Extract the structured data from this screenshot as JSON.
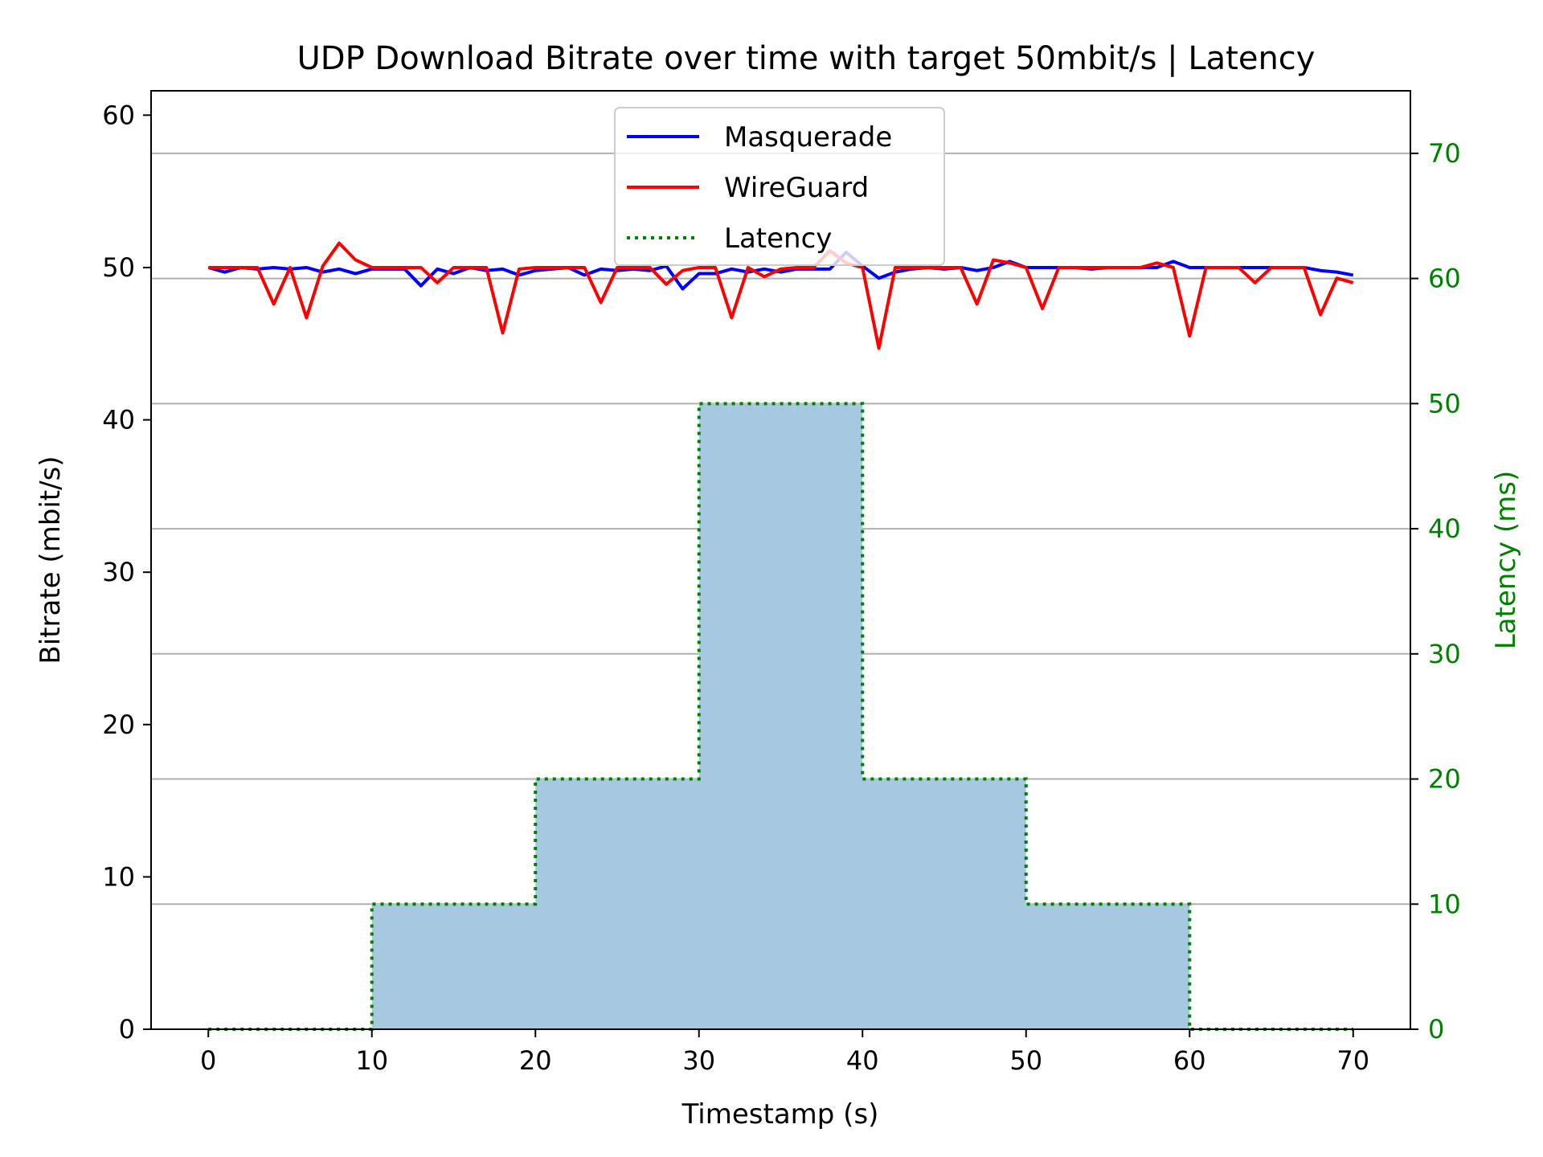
{
  "chart_data": {
    "type": "line",
    "title": "UDP Download Bitrate over time with target 50mbit/s | Latency",
    "xlabel": "Timestamp (s)",
    "ylabel": "Bitrate (mbit/s)",
    "y2label": "Latency (ms)",
    "xlim": [
      -3.5,
      73.5
    ],
    "ylim": [
      0,
      61.6
    ],
    "y2lim": [
      0,
      75
    ],
    "xticks": [
      0,
      10,
      20,
      30,
      40,
      50,
      60,
      70
    ],
    "yticks": [
      0,
      10,
      20,
      30,
      40,
      50,
      60
    ],
    "y2ticks": [
      0,
      10,
      20,
      30,
      40,
      50,
      60,
      70
    ],
    "grid": "horizontal lines at right-axis ticks",
    "legend_position": "upper center",
    "colors": {
      "masquerade": "#0000ff",
      "wireguard": "#ff0000",
      "latency_line": "#008000",
      "latency_fill": "#a6c8e0",
      "right_axis": "#008000",
      "grid": "#b0b0b0"
    },
    "x": [
      0,
      1,
      2,
      3,
      4,
      5,
      6,
      7,
      8,
      9,
      10,
      11,
      12,
      13,
      14,
      15,
      16,
      17,
      18,
      19,
      20,
      21,
      22,
      23,
      24,
      25,
      26,
      27,
      28,
      29,
      30,
      31,
      32,
      33,
      34,
      35,
      36,
      37,
      38,
      39,
      40,
      41,
      42,
      43,
      44,
      45,
      46,
      47,
      48,
      49,
      50,
      51,
      52,
      53,
      54,
      55,
      56,
      57,
      58,
      59,
      60,
      61,
      62,
      63,
      64,
      65,
      66,
      67,
      68,
      69,
      70
    ],
    "series": [
      {
        "name": "Masquerade",
        "axis": "left",
        "style": "solid",
        "values": [
          50.0,
          49.7,
          50.0,
          49.9,
          50.0,
          49.9,
          50.0,
          49.7,
          49.9,
          49.6,
          49.9,
          49.9,
          49.9,
          48.8,
          49.9,
          49.6,
          50.0,
          49.8,
          49.9,
          49.5,
          49.8,
          49.9,
          50.0,
          49.5,
          49.9,
          49.8,
          49.9,
          49.8,
          50.1,
          48.6,
          49.6,
          49.6,
          49.9,
          49.7,
          49.9,
          49.7,
          49.9,
          49.9,
          49.9,
          51.0,
          50.1,
          49.3,
          49.7,
          49.9,
          50.0,
          49.9,
          50.0,
          49.8,
          50.0,
          50.4,
          50.0,
          50.0,
          50.0,
          50.0,
          49.9,
          50.0,
          50.0,
          50.0,
          50.0,
          50.4,
          50.0,
          50.0,
          50.0,
          50.0,
          50.0,
          50.0,
          50.0,
          50.0,
          49.8,
          49.7,
          49.5
        ]
      },
      {
        "name": "WireGuard",
        "axis": "left",
        "style": "solid",
        "values": [
          50.0,
          50.0,
          50.0,
          50.0,
          47.6,
          50.0,
          46.7,
          50.1,
          51.6,
          50.5,
          50.0,
          50.0,
          50.0,
          50.0,
          49.0,
          50.0,
          50.0,
          50.0,
          45.7,
          49.9,
          50.0,
          50.0,
          50.0,
          50.0,
          47.7,
          50.0,
          50.0,
          50.0,
          48.9,
          49.8,
          50.0,
          50.0,
          46.7,
          50.0,
          49.4,
          49.9,
          50.0,
          50.0,
          51.1,
          50.3,
          50.0,
          44.7,
          50.0,
          50.0,
          50.0,
          50.0,
          50.0,
          47.6,
          50.5,
          50.3,
          50.0,
          47.3,
          50.0,
          50.0,
          50.0,
          50.0,
          50.0,
          50.0,
          50.3,
          50.0,
          45.5,
          50.0,
          50.0,
          50.0,
          49.0,
          50.0,
          50.0,
          50.0,
          46.9,
          49.3,
          49.0
        ]
      },
      {
        "name": "Latency",
        "axis": "right",
        "style": "dotted step, filled",
        "values": [
          0,
          0,
          0,
          0,
          0,
          0,
          0,
          0,
          0,
          0,
          10,
          10,
          10,
          10,
          10,
          10,
          10,
          10,
          10,
          10,
          20,
          20,
          20,
          20,
          20,
          20,
          20,
          20,
          20,
          20,
          50,
          50,
          50,
          50,
          50,
          50,
          50,
          50,
          50,
          50,
          20,
          20,
          20,
          20,
          20,
          20,
          20,
          20,
          20,
          20,
          10,
          10,
          10,
          10,
          10,
          10,
          10,
          10,
          10,
          10,
          0,
          0,
          0,
          0,
          0,
          0,
          0,
          0,
          0,
          0,
          0
        ]
      }
    ]
  }
}
